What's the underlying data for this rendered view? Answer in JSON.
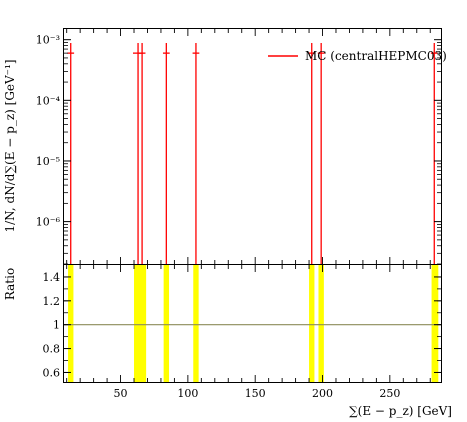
{
  "chart_data": [
    {
      "type": "line",
      "panel": "main",
      "yscale": "log",
      "ylim": [
        2e-07,
        0.0015
      ],
      "xlim": [
        8,
        288
      ],
      "ylabel": "1/N, dN/d∑(E − p_z) [GeV⁻¹]",
      "y_tick_labels": [
        "10⁻³",
        "10⁻⁴",
        "10⁻⁵",
        "10⁻⁶"
      ],
      "y_ticks": [
        0.001,
        0.0001,
        1e-05,
        1e-06
      ],
      "legend": {
        "label": "MC (centralHEPMC03)",
        "color": "#ff0000",
        "position": "top-right"
      },
      "series": [
        {
          "name": "MC (centralHEPMC03)",
          "color": "#ff0000",
          "points": [
            {
              "x": 13,
              "y": 0.0006,
              "xerr": 1.0
            },
            {
              "x": 63,
              "y": 0.0006,
              "xerr": 1.5
            },
            {
              "x": 66,
              "y": 0.0006,
              "xerr": 1.0
            },
            {
              "x": 84,
              "y": 0.0006,
              "xerr": 1.0
            },
            {
              "x": 106,
              "y": 0.0006,
              "xerr": 1.0
            },
            {
              "x": 192,
              "y": 0.0006,
              "xerr": 1.0
            },
            {
              "x": 199,
              "y": 0.0006,
              "xerr": 1.0
            },
            {
              "x": 283,
              "y": 0.0006,
              "xerr": 1.0
            }
          ]
        }
      ]
    },
    {
      "type": "area",
      "panel": "ratio",
      "ylabel": "Ratio",
      "xlabel": "∑(E − p_z) [GeV]",
      "xlim": [
        8,
        288
      ],
      "ylim": [
        0.52,
        1.5
      ],
      "x_ticks": [
        50,
        100,
        150,
        200,
        250
      ],
      "x_tick_labels": [
        "50",
        "100",
        "150",
        "200",
        "250"
      ],
      "y_ticks": [
        0.6,
        0.8,
        1.0,
        1.2,
        1.4
      ],
      "y_tick_labels": [
        "0.6",
        "0.8",
        "1",
        "1.2",
        "1.4"
      ],
      "reference_line": 1.0,
      "reference_color": "#8c8c5a",
      "band_color": "#ffff00",
      "bands": [
        {
          "x0": 11,
          "x1": 15
        },
        {
          "x0": 60,
          "x1": 69
        },
        {
          "x0": 82,
          "x1": 86
        },
        {
          "x0": 104,
          "x1": 108
        },
        {
          "x0": 190,
          "x1": 194
        },
        {
          "x0": 197,
          "x1": 201
        },
        {
          "x0": 281,
          "x1": 286
        }
      ]
    }
  ]
}
